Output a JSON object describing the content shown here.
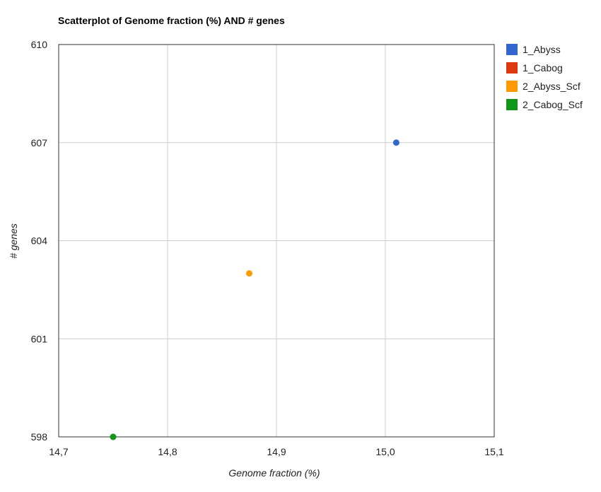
{
  "chart_data": {
    "type": "scatter",
    "title": "Scatterplot of Genome fraction (%) AND # genes",
    "xlabel": "Genome fraction (%)",
    "ylabel": "# genes",
    "xlim": [
      14.7,
      15.1
    ],
    "ylim": [
      598,
      610
    ],
    "x_ticks": [
      "14,7",
      "14,8",
      "14,9",
      "15,0",
      "15,1"
    ],
    "x_tick_values": [
      14.7,
      14.8,
      14.9,
      15.0,
      15.1
    ],
    "y_ticks": [
      "598",
      "601",
      "604",
      "607",
      "610"
    ],
    "y_tick_values": [
      598,
      601,
      604,
      607,
      610
    ],
    "grid": true,
    "legend_position": "right",
    "series": [
      {
        "name": "1_Abyss",
        "color": "#3366cc",
        "points": [
          {
            "x": 15.01,
            "y": 607
          }
        ]
      },
      {
        "name": "1_Cabog",
        "color": "#dc3912",
        "points": [
          {
            "x": 14.75,
            "y": 598
          }
        ]
      },
      {
        "name": "2_Abyss_Scf",
        "color": "#ff9900",
        "points": [
          {
            "x": 14.875,
            "y": 603
          }
        ]
      },
      {
        "name": "2_Cabog_Scf",
        "color": "#109618",
        "points": [
          {
            "x": 14.75,
            "y": 598
          }
        ]
      }
    ]
  }
}
